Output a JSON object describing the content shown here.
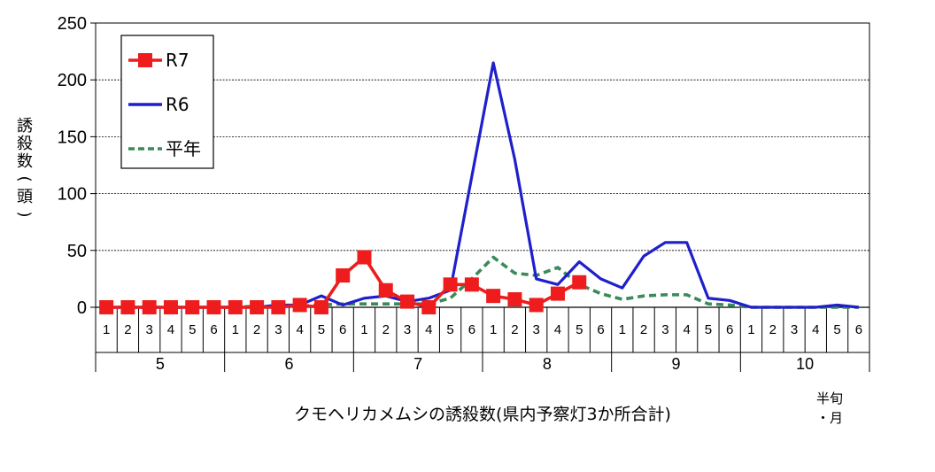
{
  "chart_data": {
    "type": "line",
    "title": "クモヘリカメムシの誘殺数(県内予察灯3か所合計)",
    "ylabel_lines": [
      "誘",
      "殺",
      "数",
      "(",
      "頭",
      ")"
    ],
    "xunit_lines": [
      "半旬",
      "・月"
    ],
    "ylim": [
      0,
      250
    ],
    "yticks": [
      "0",
      "50",
      "100",
      "150",
      "200",
      "250"
    ],
    "grid": true,
    "legend_position": "top-left",
    "months": [
      "5",
      "6",
      "7",
      "8",
      "9",
      "10"
    ],
    "pentads": [
      "1",
      "2",
      "3",
      "4",
      "5",
      "6"
    ],
    "series": [
      {
        "name": "R7",
        "color": "#ee1c1c",
        "style": "solid-square-markers",
        "values": [
          0,
          0,
          0,
          0,
          0,
          0,
          0,
          0,
          0,
          2,
          0,
          28,
          44,
          15,
          5,
          0,
          20,
          20,
          10,
          7,
          2,
          12,
          22
        ]
      },
      {
        "name": "R6",
        "color": "#1f1fcc",
        "style": "solid",
        "values": [
          0,
          0,
          0,
          0,
          0,
          0,
          0,
          0,
          2,
          2,
          10,
          2,
          8,
          10,
          5,
          8,
          15,
          115,
          215,
          130,
          25,
          20,
          40,
          25,
          17,
          45,
          57,
          57,
          8,
          6,
          0,
          0,
          0,
          0,
          2,
          0
        ]
      },
      {
        "name": "平年",
        "color": "#3a8a5a",
        "style": "dashed",
        "values": [
          0,
          0,
          0,
          0,
          0,
          0,
          0,
          1,
          1,
          1,
          2,
          3,
          3,
          3,
          3,
          3,
          8,
          25,
          44,
          30,
          28,
          35,
          20,
          12,
          7,
          10,
          11,
          11,
          3,
          2,
          0,
          0,
          0,
          0,
          0,
          0
        ]
      }
    ]
  }
}
